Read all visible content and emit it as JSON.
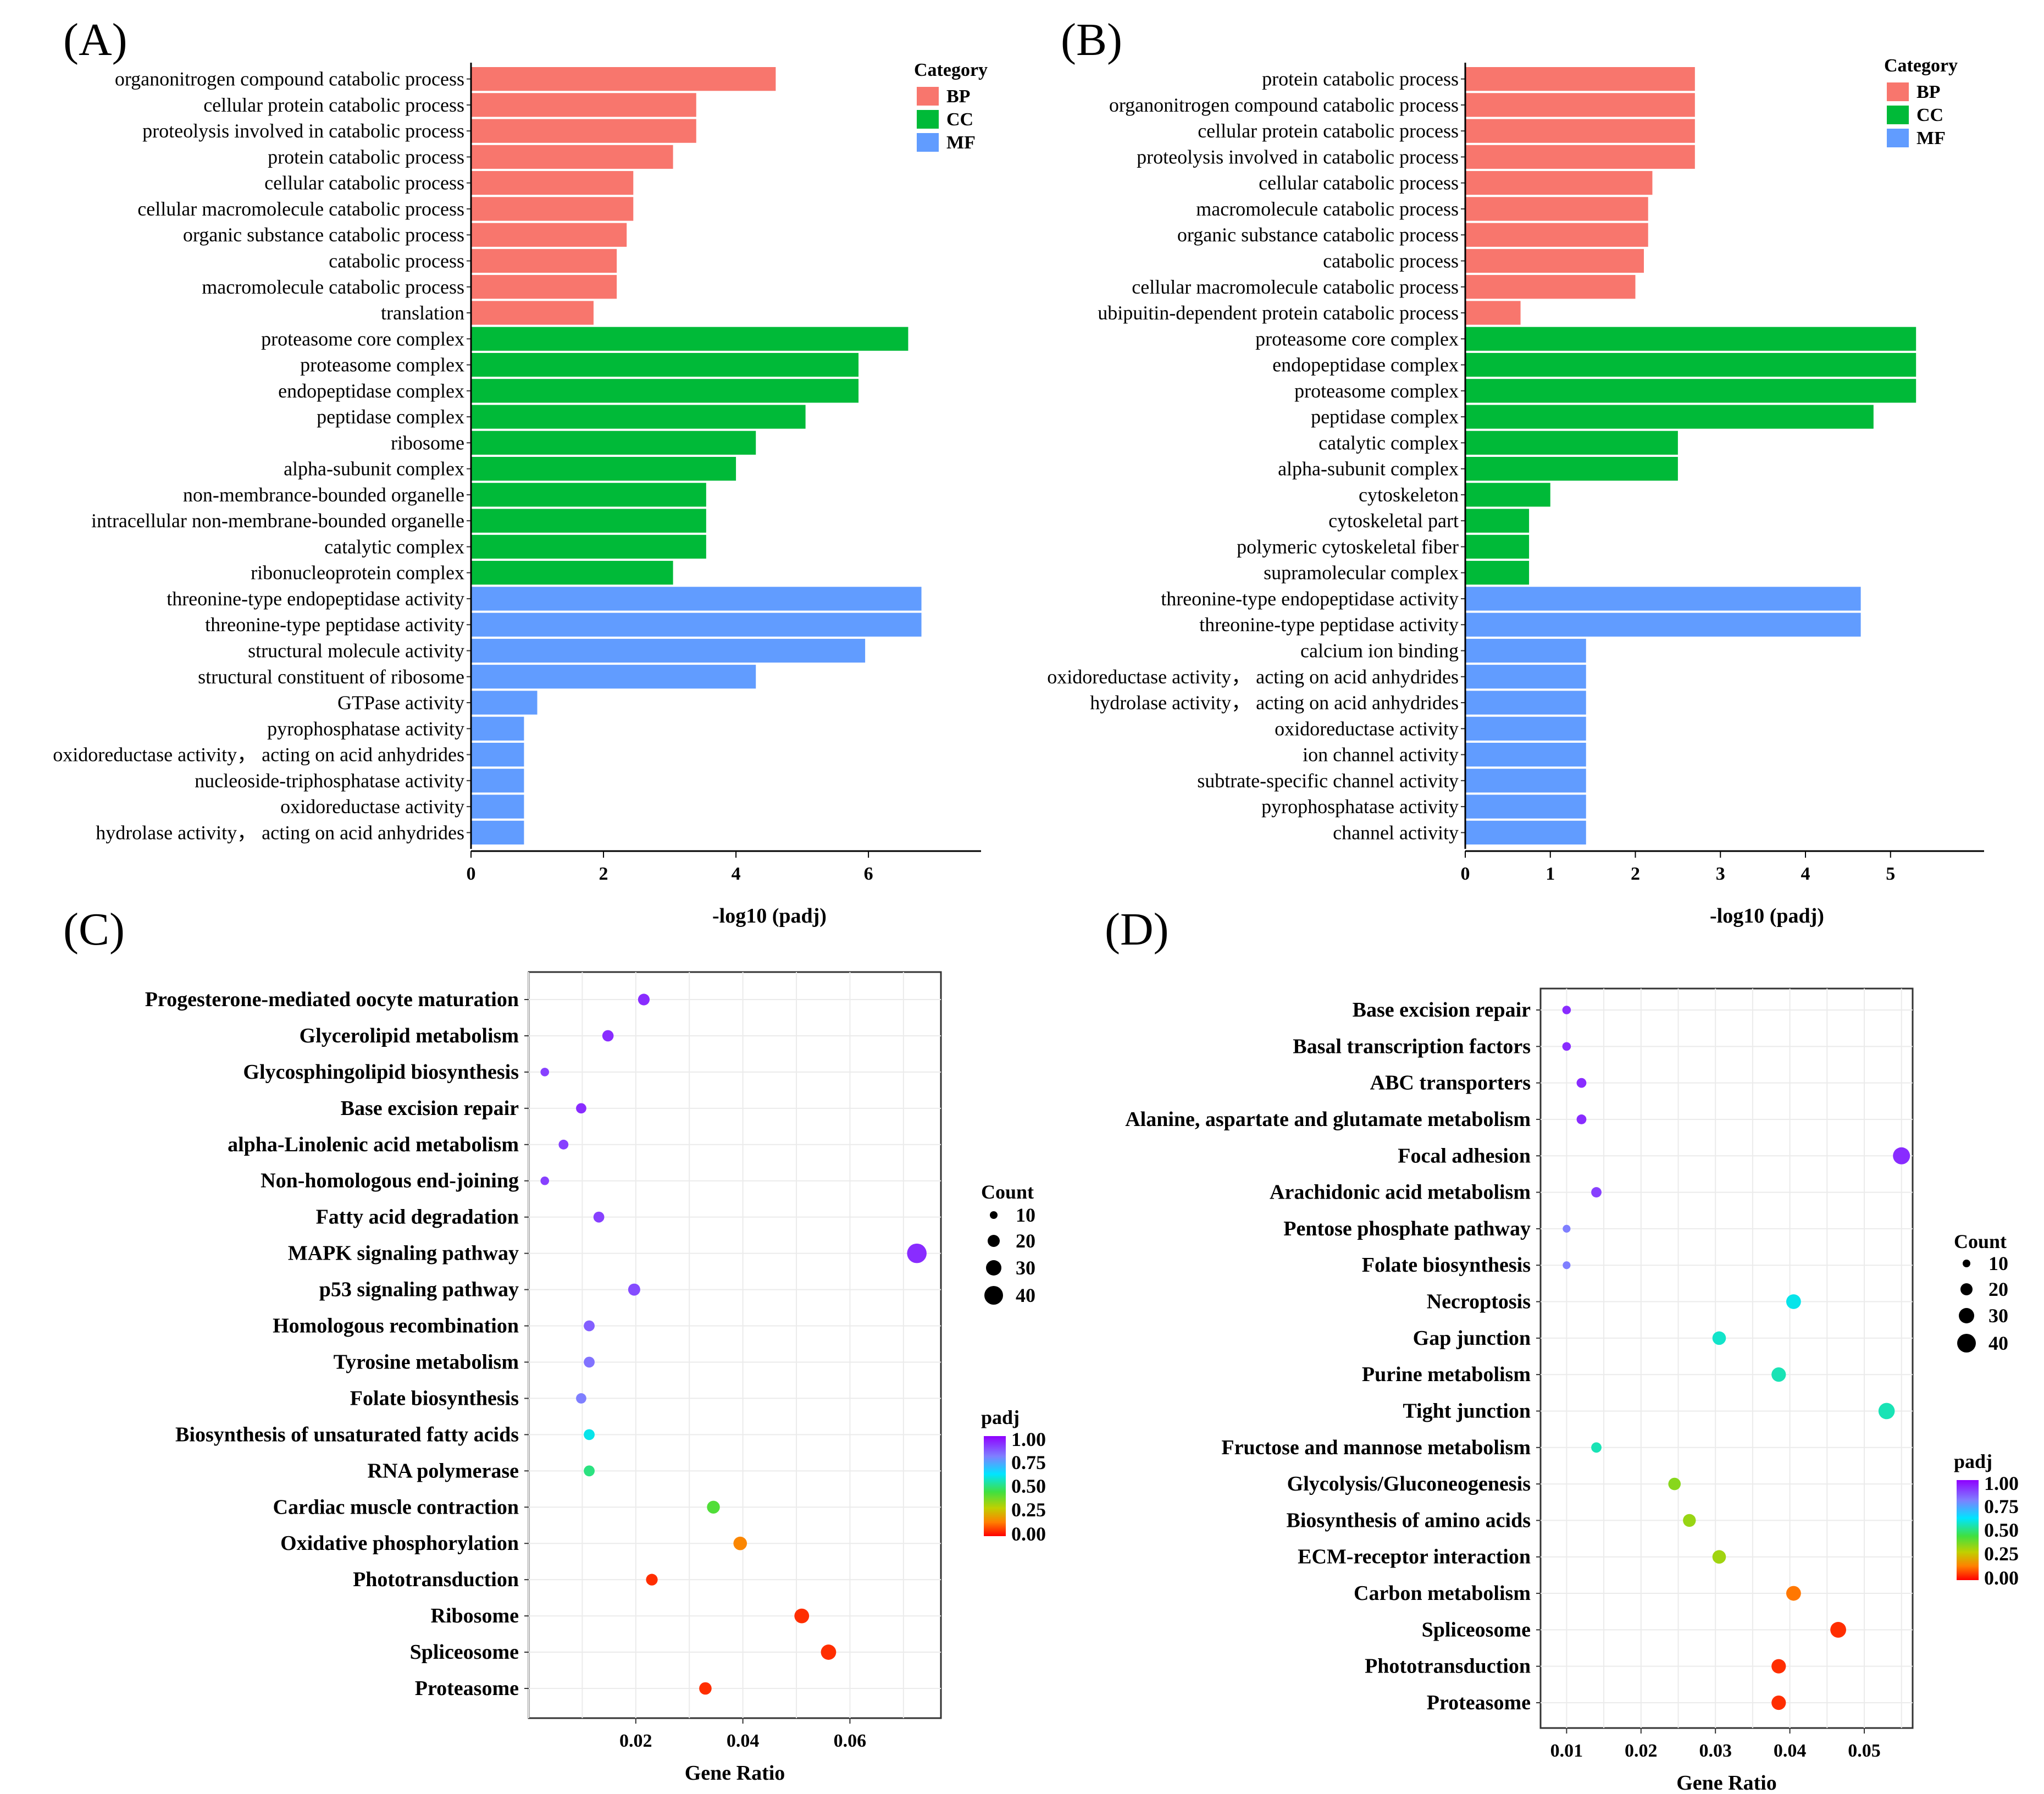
{
  "panel_labels": [
    "(A)",
    "(B)",
    "(C)",
    "(D)"
  ],
  "legend": {
    "category_title": "Category",
    "categories": [
      {
        "name": "BP",
        "color": "#F8766D"
      },
      {
        "name": "CC",
        "color": "#00BA38"
      },
      {
        "name": "MF",
        "color": "#619CFF"
      }
    ],
    "count_title": "Count",
    "count_values": [
      "10",
      "20",
      "30",
      "40"
    ],
    "padj_title": "padj",
    "padj_ticks": [
      "1.00",
      "0.75",
      "0.50",
      "0.25",
      "0.00"
    ]
  },
  "chart_data": [
    {
      "type": "bar",
      "orientation": "horizontal",
      "xlabel": "-log10 (padj)",
      "xlim": [
        0,
        7.7
      ],
      "xticks": [
        "0",
        "2",
        "4",
        "6"
      ],
      "categories": [
        "organonitrogen compound catabolic process",
        "cellular protein catabolic process",
        "proteolysis involved in catabolic process",
        "protein catabolic process",
        "cellular catabolic process",
        "cellular macromolecule catabolic process",
        "organic substance catabolic process",
        "catabolic process",
        "macromolecule catabolic process",
        "translation",
        "proteasome core complex",
        "proteasome complex",
        "endopeptidase complex",
        "peptidase complex",
        "ribosome",
        "alpha-subunit complex",
        "non-membrance-bounded organelle",
        "intracellular non-membrane-bounded organelle",
        "catalytic complex",
        "ribonucleoprotein complex",
        "threonine-type endopeptidase activity",
        "threonine-type peptidase activity",
        "structural molecule activity",
        "structural constituent of ribosome",
        "GTPase activity",
        "pyrophosphatase activity",
        "oxidoreductase activity， acting on acid anhydrides",
        "nucleoside-triphosphatase activity",
        "oxidoreductase activity",
        "hydrolase activity， acting on acid anhydrides"
      ],
      "values": [
        4.6,
        3.4,
        3.4,
        3.05,
        2.45,
        2.45,
        2.35,
        2.2,
        2.2,
        1.85,
        6.6,
        5.85,
        5.85,
        5.05,
        4.3,
        4.0,
        3.55,
        3.55,
        3.55,
        3.05,
        6.8,
        6.8,
        5.95,
        4.3,
        1.0,
        0.8,
        0.8,
        0.8,
        0.8,
        0.8
      ],
      "groups": [
        "BP",
        "BP",
        "BP",
        "BP",
        "BP",
        "BP",
        "BP",
        "BP",
        "BP",
        "BP",
        "CC",
        "CC",
        "CC",
        "CC",
        "CC",
        "CC",
        "CC",
        "CC",
        "CC",
        "CC",
        "MF",
        "MF",
        "MF",
        "MF",
        "MF",
        "MF",
        "MF",
        "MF",
        "MF",
        "MF"
      ]
    },
    {
      "type": "bar",
      "orientation": "horizontal",
      "xlabel": "-log10 (padj)",
      "xlim": [
        0,
        6.1
      ],
      "xticks": [
        "0",
        "1",
        "2",
        "3",
        "4",
        "5"
      ],
      "categories": [
        "protein catabolic process",
        "organonitrogen compound catabolic process",
        "cellular protein catabolic process",
        "proteolysis involved in catabolic process",
        "cellular catabolic process",
        "macromolecule catabolic process",
        "organic substance catabolic process",
        "catabolic process",
        "cellular macromolecule catabolic process",
        "ubipuitin-dependent protein catabolic process",
        "proteasome core complex",
        "endopeptidase complex",
        "proteasome complex",
        "peptidase complex",
        "catalytic complex",
        "alpha-subunit complex",
        "cytoskeleton",
        "cytoskeletal part",
        "polymeric cytoskeletal fiber",
        "supramolecular complex",
        "threonine-type endopeptidase activity",
        "threonine-type peptidase activity",
        "calcium ion binding",
        "oxidoreductase activity， acting on acid anhydrides",
        "hydrolase activity， acting on acid anhydrides",
        "oxidoreductase activity",
        "ion channel activity",
        "subtrate-specific channel activity",
        "pyrophosphatase activity",
        "channel activity"
      ],
      "values": [
        2.7,
        2.7,
        2.7,
        2.7,
        2.2,
        2.15,
        2.15,
        2.1,
        2.0,
        0.65,
        5.3,
        5.3,
        5.3,
        4.8,
        2.5,
        2.5,
        1.0,
        0.75,
        0.75,
        0.75,
        4.65,
        4.65,
        1.42,
        1.42,
        1.42,
        1.42,
        1.42,
        1.42,
        1.42,
        1.42
      ],
      "groups": [
        "BP",
        "BP",
        "BP",
        "BP",
        "BP",
        "BP",
        "BP",
        "BP",
        "BP",
        "BP",
        "CC",
        "CC",
        "CC",
        "CC",
        "CC",
        "CC",
        "CC",
        "CC",
        "CC",
        "CC",
        "MF",
        "MF",
        "MF",
        "MF",
        "MF",
        "MF",
        "MF",
        "MF",
        "MF",
        "MF"
      ]
    },
    {
      "type": "scatter",
      "xlabel": "Gene Ratio",
      "xlim": [
        0.0,
        0.077
      ],
      "xticks": [
        0.02,
        0.04,
        0.06
      ],
      "xtick_labels": [
        "0.02",
        "0.04",
        "0.06"
      ],
      "count_range": [
        10,
        40
      ],
      "categories": [
        "Progesterone-mediated oocyte maturation",
        "Glycerolipid metabolism",
        "Glycosphingolipid biosynthesis",
        "Base excision repair",
        "alpha-Linolenic acid metabolism",
        "Non-homologous end-joining",
        "Fatty acid degradation",
        "MAPK signaling pathway",
        "p53 signaling pathway",
        "Homologous recombination",
        "Tyrosine metabolism",
        "Folate biosynthesis",
        "Biosynthesis of unsaturated fatty acids",
        "RNA polymerase",
        "Cardiac muscle contraction",
        "Oxidative phosphorylation",
        "Phototransduction",
        "Ribosome",
        "Spliceosome",
        "Proteasome"
      ],
      "x": [
        0.0215,
        0.0148,
        0.003,
        0.0098,
        0.0065,
        0.003,
        0.0131,
        0.0725,
        0.0197,
        0.0113,
        0.0113,
        0.0098,
        0.0113,
        0.0113,
        0.0345,
        0.0395,
        0.023,
        0.051,
        0.056,
        0.033
      ],
      "count": [
        9,
        8,
        3,
        6,
        5,
        3,
        7,
        39,
        10,
        7,
        7,
        6,
        7,
        7,
        12,
        14,
        9,
        18,
        20,
        11
      ],
      "padj": [
        0.93,
        0.93,
        0.9,
        0.93,
        0.9,
        0.9,
        0.9,
        0.93,
        0.88,
        0.85,
        0.82,
        0.8,
        0.6,
        0.5,
        0.42,
        0.15,
        0.05,
        0.05,
        0.05,
        0.05
      ]
    },
    {
      "type": "scatter",
      "xlabel": "Gene Ratio",
      "xlim": [
        0.0065,
        0.0565
      ],
      "xticks": [
        0.01,
        0.02,
        0.03,
        0.04,
        0.05
      ],
      "xtick_labels": [
        "0.01",
        "0.02",
        "0.03",
        "0.04",
        "0.05"
      ],
      "count_range": [
        10,
        40
      ],
      "categories": [
        "Base excision repair",
        "Basal transcription factors",
        "ABC transporters",
        "Alanine, aspartate and glutamate metabolism",
        "Focal adhesion",
        "Arachidonic acid metabolism",
        "Pentose phosphate pathway",
        "Folate biosynthesis",
        "Necroptosis",
        "Gap junction",
        "Purine metabolism",
        "Tight junction",
        "Fructose and mannose metabolism",
        "Glycolysis/Gluconeogenesis",
        "Biosynthesis of amino acids",
        "ECM-receptor interaction",
        "Carbon metabolism",
        "Spliceosome",
        "Phototransduction",
        "Proteasome"
      ],
      "x": [
        0.01,
        0.01,
        0.012,
        0.012,
        0.055,
        0.014,
        0.01,
        0.01,
        0.0405,
        0.0305,
        0.0385,
        0.053,
        0.014,
        0.0245,
        0.0265,
        0.0305,
        0.0405,
        0.0465,
        0.0385,
        0.0385
      ],
      "count": [
        3,
        3,
        5,
        5,
        27,
        6,
        2,
        2,
        18,
        14,
        17,
        24,
        6,
        11,
        12,
        14,
        18,
        22,
        17,
        17
      ],
      "padj": [
        0.93,
        0.93,
        0.93,
        0.93,
        0.93,
        0.9,
        0.8,
        0.8,
        0.6,
        0.57,
        0.55,
        0.55,
        0.55,
        0.35,
        0.33,
        0.32,
        0.13,
        0.05,
        0.05,
        0.05
      ]
    }
  ]
}
